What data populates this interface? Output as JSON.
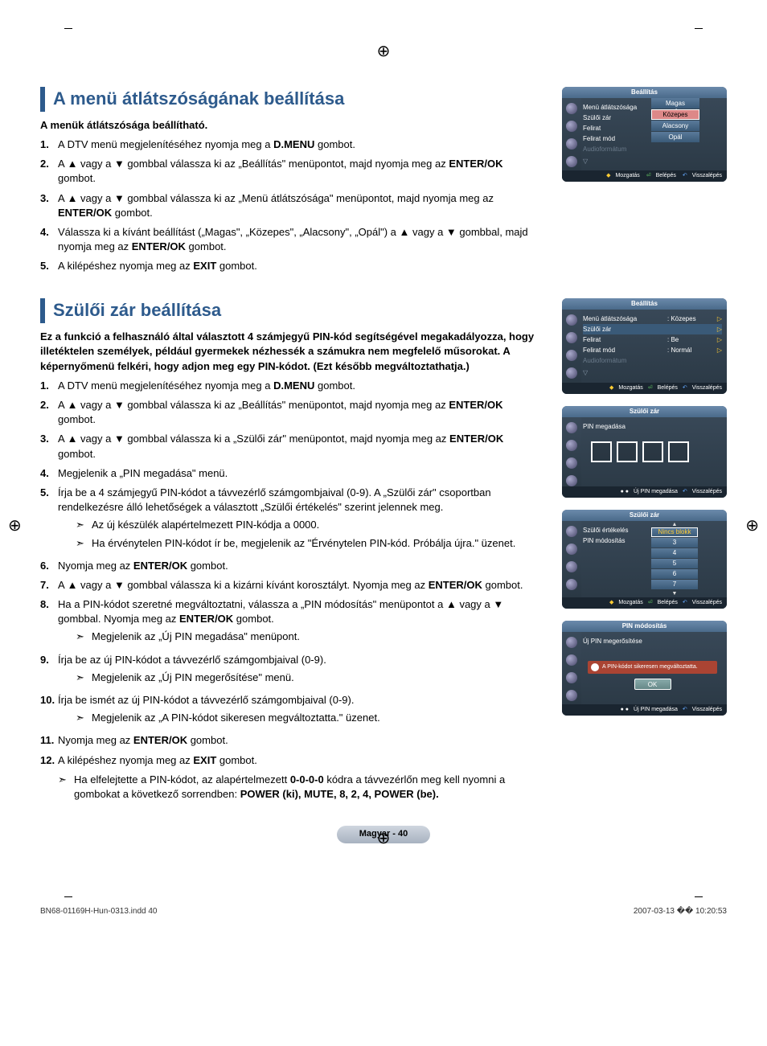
{
  "sec1": {
    "title": "A menü átlátszóságának beállítása",
    "intro": "A menük átlátszósága beállítható.",
    "steps": [
      "A DTV menü megjelenítéséhez nyomja meg a <b>D.MENU</b> gombot.",
      "A ▲ vagy a ▼ gombbal válassza ki az „Beállítás\" menüpontot, majd nyomja meg az <b>ENTER/OK</b> gombot.",
      "A ▲ vagy a ▼ gombbal válassza ki az „Menü átlátszósága\" menüpontot, majd nyomja meg az <b>ENTER/OK</b> gombot.",
      "Válassza ki a kívánt beállítást („Magas\", „Közepes\", „Alacsony\", „Opál\") a ▲ vagy a ▼ gombbal, majd nyomja meg az <b>ENTER/OK</b> gombot.",
      "A kilépéshez nyomja meg az <b>EXIT</b> gombot."
    ]
  },
  "sec2": {
    "title": "Szülői zár beállítása",
    "intro": "Ez a funkció a felhasználó által választott 4 számjegyű PIN-kód segítségével megakadályozza, hogy illetéktelen személyek, például gyermekek nézhessék a számukra nem megfelelő műsorokat. A képernyőmenü felkéri, hogy adjon meg egy PIN-kódot. (Ezt később megváltoztathatja.)",
    "steps": [
      {
        "t": "A DTV menü megjelenítéséhez nyomja meg a <b>D.MENU</b> gombot."
      },
      {
        "t": "A ▲ vagy a ▼ gombbal válassza ki az „Beállítás\" menüpontot, majd nyomja meg az <b>ENTER/OK</b> gombot."
      },
      {
        "t": "A ▲ vagy a ▼ gombbal válassza ki a „Szülői zár\" menüpontot, majd nyomja meg az <b>ENTER/OK</b> gombot."
      },
      {
        "t": "Megjelenik a „PIN megadása\" menü."
      },
      {
        "t": "Írja be a 4 számjegyű PIN-kódot a távvezérlő  számgombjaival (0-9). A „Szülői zár\" csoportban rendelkezésre álló lehetőségek a választott „Szülői értékelés\" szerint jelennek meg.",
        "sub": [
          "Az új készülék alapértelmezett PIN-kódja a 0000.",
          "Ha érvénytelen PIN-kódot ír be, megjelenik az \"Érvénytelen PIN-kód. Próbálja újra.\" üzenet."
        ]
      },
      {
        "t": "Nyomja meg az <b>ENTER/OK</b> gombot."
      },
      {
        "t": "A ▲ vagy a ▼ gombbal válassza ki a kizárni kívánt korosztályt. Nyomja meg az <b>ENTER/OK</b> gombot."
      },
      {
        "t": "Ha a PIN-kódot szeretné megváltoztatni, válassza a „PIN módosítás\" menüpontot a ▲ vagy a ▼ gombbal. Nyomja meg az <b>ENTER/OK</b> gombot.",
        "sub": [
          "Megjelenik az „Új PIN megadása\" menüpont."
        ]
      },
      {
        "t": "Írja be az új PIN-kódot a távvezérlő számgombjaival (0-9).",
        "sub": [
          "Megjelenik az „Új PIN megerősítése\" menü."
        ]
      },
      {
        "t": "Írja be ismét az új PIN-kódot a távvezérlő számgombjaival (0-9).",
        "sub": [
          "Megjelenik az „A PIN-kódot sikeresen megváltoztatta.\" üzenet."
        ]
      },
      {
        "t": "Nyomja meg az <b>ENTER/OK</b> gombot."
      },
      {
        "t": "A kilépéshez nyomja meg az <b>EXIT</b> gombot."
      }
    ],
    "footnote": "Ha elfelejtette a PIN-kódot, az alapértelmezett <b>0-0-0-0</b> kódra a távvezérlőn meg kell nyomni a gombokat a következő sorrendben: <b>POWER (ki), MUTE, 8, 2, 4, POWER (be).</b>"
  },
  "osd": {
    "beallitas": "Beállítás",
    "mozgatas": "Mozgatás",
    "belepes": "Belépés",
    "visszalepes": "Visszalépés",
    "ujpin": "Új PIN megadása",
    "p1_rows": [
      {
        "l": "Menü átlátszósága",
        "v": ":"
      },
      {
        "l": "Szülői zár",
        "v": ""
      },
      {
        "l": "Felirat",
        "v": ""
      },
      {
        "l": "Felirat mód",
        "v": ""
      },
      {
        "l": "Audioformátum",
        "v": "",
        "dim": true
      }
    ],
    "p1_opts": [
      "Magas",
      "Közepes",
      "Alacsony",
      "Opál"
    ],
    "p1_sel": 1,
    "p2_rows": [
      {
        "l": "Menü átlátszósága",
        "v": ": Közepes",
        "tri": true
      },
      {
        "l": "Szülői zár",
        "v": "",
        "tri": true,
        "sel": true
      },
      {
        "l": "Felirat",
        "v": ": Be",
        "tri": true
      },
      {
        "l": "Felirat mód",
        "v": ": Normál",
        "tri": true
      },
      {
        "l": "Audioformátum",
        "v": "",
        "dim": true
      }
    ],
    "p3_title": "Szülői zár",
    "p3_label": "PIN megadása",
    "p4_title": "Szülői zár",
    "p4_rows": [
      {
        "l": "Szülői értékelés",
        "v": ":"
      },
      {
        "l": "PIN módosítás",
        "v": ""
      }
    ],
    "p4_ratings": [
      "Nincs blokk",
      "3",
      "4",
      "5",
      "6",
      "7"
    ],
    "p5_title": "PIN módosítás",
    "p5_label": "Új PIN megerősítése",
    "p5_msg": "A PIN-kódot sikeresen megváltoztatta.",
    "ok": "OK"
  },
  "footer": {
    "page": "Magyar -  40",
    "file": "BN68-01169H-Hun-0313.indd   40",
    "ts": "2007-03-13   �� 10:20:53"
  }
}
